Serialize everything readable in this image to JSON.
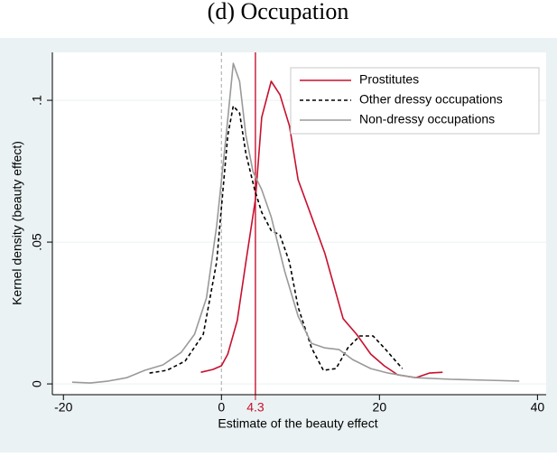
{
  "chart_data": {
    "type": "line",
    "title": "(d) Occupation",
    "xlabel": "Estimate of the beauty effect",
    "ylabel": "Kernel density (beauty effect)",
    "xlim": [
      -21.4,
      41.1
    ],
    "ylim": [
      -0.0038,
      0.1169
    ],
    "xticks": [
      -20,
      0,
      20,
      40
    ],
    "yticks": [
      0,
      {
        "value": 0.05,
        "label": ".05"
      },
      {
        "value": 0.1,
        "label": ".1"
      }
    ],
    "grid": true,
    "legend": "top-right",
    "ref_lines": [
      {
        "value": 4.3,
        "label": "4.3",
        "color": "#c8102e",
        "style": "solid"
      },
      {
        "value": 0,
        "color": "#b4b4b4",
        "style": "dash"
      }
    ],
    "series": [
      {
        "name": "Prostitutes",
        "color": "#c8102e",
        "style": "solid",
        "x": [
          -2.6,
          -1.1,
          0,
          0.8,
          2.0,
          3.1,
          4.3,
          5.1,
          6.3,
          7.4,
          8.6,
          9.7,
          11.4,
          13.1,
          15.4,
          17.1,
          18.9,
          20.6,
          22.3,
          24.6,
          26.3,
          28
        ],
        "values": [
          0.0041,
          0.0051,
          0.0064,
          0.0105,
          0.0223,
          0.043,
          0.065,
          0.094,
          0.1067,
          0.102,
          0.091,
          0.072,
          0.059,
          0.046,
          0.023,
          0.0175,
          0.0105,
          0.0064,
          0.0032,
          0.0022,
          0.0038,
          0.0041
        ]
      },
      {
        "name": "Other dressy occupations",
        "color": "#000000",
        "style": "dash",
        "x": [
          -9.1,
          -6.9,
          -4.6,
          -2.3,
          -0.6,
          0.3,
          0.8,
          1.5,
          2.3,
          3.1,
          4.2,
          5.1,
          6.3,
          7.4,
          8.6,
          9.7,
          11.4,
          12.9,
          14.5,
          16,
          17.5,
          19.2,
          20.6,
          22.9
        ],
        "values": [
          0.0038,
          0.0048,
          0.008,
          0.0175,
          0.043,
          0.0717,
          0.0876,
          0.098,
          0.0955,
          0.0812,
          0.0685,
          0.0605,
          0.0541,
          0.0525,
          0.043,
          0.0271,
          0.0127,
          0.0048,
          0.0054,
          0.0127,
          0.0169,
          0.0169,
          0.0127,
          0.0054
        ]
      },
      {
        "name": "Non-dressy occupations",
        "color": "#9a9a9a",
        "style": "solid",
        "x": [
          -18.9,
          -16.6,
          -14.3,
          -12,
          -9.7,
          -7.4,
          -5.1,
          -3.4,
          -1.9,
          -0.6,
          0.6,
          1.5,
          2.3,
          3.1,
          4,
          5.1,
          6.3,
          8,
          9.7,
          11.4,
          13.1,
          14.9,
          16.6,
          18.9,
          21.1,
          24.6,
          29.1,
          33.7,
          37.7
        ],
        "values": [
          0.0006,
          0.0003,
          0.001,
          0.0022,
          0.0048,
          0.0067,
          0.0111,
          0.0175,
          0.0303,
          0.0557,
          0.0876,
          0.113,
          0.1067,
          0.0876,
          0.0748,
          0.0685,
          0.0589,
          0.0398,
          0.0239,
          0.0143,
          0.0127,
          0.0121,
          0.0086,
          0.0054,
          0.0038,
          0.0022,
          0.0016,
          0.0013,
          0.001
        ]
      }
    ]
  }
}
